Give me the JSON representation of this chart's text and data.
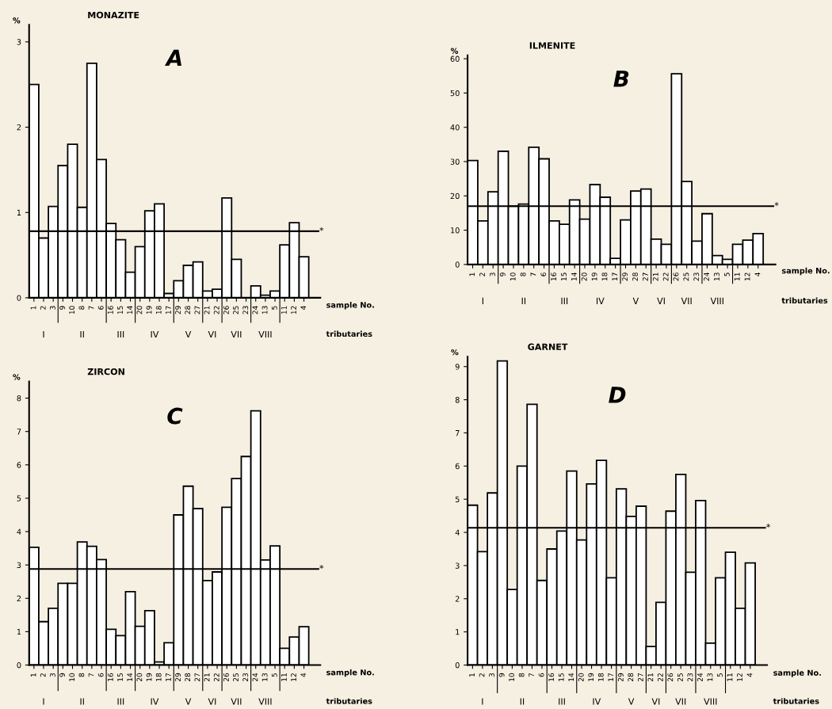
{
  "chart_data": [
    {
      "type": "bar",
      "title": "MONAZITE",
      "ylabel": "%",
      "xlabel": "sample No.",
      "color": "#ffffff",
      "categories": [
        "1",
        "2",
        "3",
        "9",
        "10",
        "8",
        "7",
        "6",
        "16",
        "15",
        "14",
        "20",
        "19",
        "18",
        "17",
        "29",
        "28",
        "27",
        "21",
        "22",
        "26",
        "25",
        "23",
        "24",
        "13",
        "5",
        "11",
        "12",
        "4"
      ],
      "values": [
        2.5,
        0.7,
        1.07,
        1.55,
        1.8,
        1.06,
        2.75,
        1.62,
        0.87,
        0.68,
        0.3,
        0.6,
        1.02,
        1.1,
        0.05,
        0.2,
        0.38,
        0.42,
        0.08,
        0.1,
        1.17,
        0.45,
        null,
        0.14,
        0.03,
        0.08,
        0.62,
        0.88,
        0.48
      ],
      "ylim": [
        0,
        3.2
      ],
      "yticks": [
        0,
        1,
        2,
        3
      ],
      "ref_lines": [
        {
          "axis": "y",
          "value": 0.78,
          "label": "*"
        }
      ],
      "annotations": [
        "A",
        "tributaries",
        "I",
        "II",
        "III",
        "IV",
        "V",
        "VI",
        "VII",
        "VIII"
      ]
    },
    {
      "type": "bar",
      "title": "ILMENITE",
      "ylabel": "%",
      "xlabel": "sample No.",
      "color": "#ffffff",
      "categories": [
        "1",
        "2",
        "3",
        "9",
        "10",
        "8",
        "7",
        "6",
        "16",
        "15",
        "14",
        "20",
        "19",
        "18",
        "17",
        "29",
        "28",
        "27",
        "21",
        "22",
        "26",
        "25",
        "23",
        "24",
        "13",
        "5",
        "11",
        "12",
        "4"
      ],
      "values": [
        30.3,
        12.7,
        21.2,
        33,
        17,
        17.6,
        34.2,
        30.8,
        12.7,
        11.7,
        18.8,
        13.2,
        23.3,
        19.6,
        1.8,
        13,
        21.4,
        22,
        7.4,
        5.9,
        55.6,
        24.2,
        6.8,
        14.8,
        2.6,
        1.5,
        5.9,
        7.1,
        9
      ],
      "ylim": [
        0,
        61
      ],
      "yticks": [
        0,
        10,
        20,
        30,
        40,
        50,
        60
      ],
      "ref_lines": [
        {
          "axis": "y",
          "value": 17,
          "label": "*"
        }
      ],
      "annotations": [
        "B",
        "tributaries",
        "I",
        "II",
        "III",
        "IV",
        "V",
        "VI",
        "VII",
        "VIII"
      ]
    },
    {
      "type": "bar",
      "title": "ZIRCON",
      "ylabel": "%",
      "xlabel": "sample No.",
      "color": "#ffffff",
      "categories": [
        "1",
        "2",
        "3",
        "9",
        "10",
        "8",
        "7",
        "6",
        "16",
        "15",
        "14",
        "20",
        "19",
        "18",
        "17",
        "29",
        "28",
        "27",
        "21",
        "22",
        "26",
        "25",
        "23",
        "24",
        "13",
        "5",
        "11",
        "12",
        "4"
      ],
      "values": [
        3.53,
        1.3,
        1.7,
        2.45,
        2.45,
        3.69,
        3.56,
        3.16,
        1.07,
        0.88,
        2.2,
        1.16,
        1.63,
        0.09,
        0.67,
        4.5,
        5.36,
        4.69,
        2.53,
        2.79,
        4.73,
        5.59,
        6.25,
        7.62,
        3.15,
        3.57,
        0.5,
        0.84,
        1.15
      ],
      "ylim": [
        0,
        8.5
      ],
      "yticks": [
        0,
        1,
        2,
        3,
        4,
        5,
        6,
        7,
        8
      ],
      "ref_lines": [
        {
          "axis": "y",
          "value": 2.88,
          "label": "*"
        }
      ],
      "annotations": [
        "C",
        "tributaries",
        "I",
        "II",
        "III",
        "IV",
        "V",
        "VI",
        "VII",
        "VIII"
      ]
    },
    {
      "type": "bar",
      "title": "GARNET",
      "ylabel": "%",
      "xlabel": "sample No.",
      "color": "#ffffff",
      "categories": [
        "1",
        "2",
        "3",
        "9",
        "10",
        "8",
        "7",
        "6",
        "16",
        "15",
        "14",
        "20",
        "19",
        "18",
        "17",
        "29",
        "28",
        "27",
        "21",
        "22",
        "26",
        "25",
        "23",
        "24",
        "13",
        "5",
        "11",
        "12",
        "4"
      ],
      "values": [
        4.82,
        3.42,
        5.19,
        9.17,
        2.28,
        6.0,
        7.86,
        2.55,
        3.5,
        4.04,
        5.85,
        3.77,
        5.46,
        6.17,
        2.63,
        5.31,
        4.48,
        4.79,
        0.56,
        1.89,
        4.64,
        5.75,
        2.8,
        4.96,
        0.66,
        2.63,
        3.4,
        1.71,
        3.08
      ],
      "ylim": [
        0,
        9.3
      ],
      "yticks": [
        0,
        1,
        2,
        3,
        4,
        5,
        6,
        7,
        8,
        9
      ],
      "ref_lines": [
        {
          "axis": "y",
          "value": 4.14,
          "label": "*"
        }
      ],
      "annotations": [
        "D",
        "tributaries",
        "I",
        "II",
        "III",
        "IV",
        "V",
        "VI",
        "VII",
        "VIII"
      ]
    }
  ]
}
